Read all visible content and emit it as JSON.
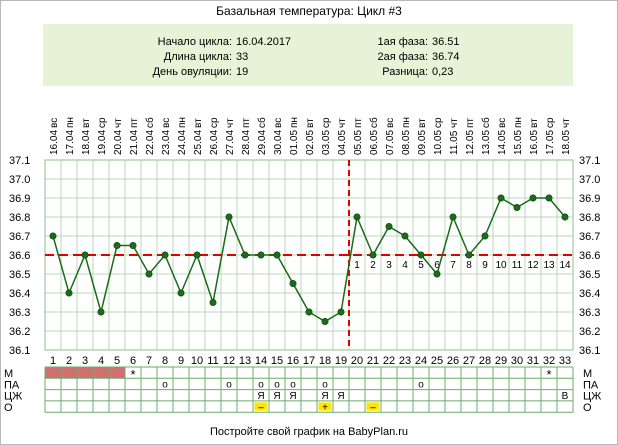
{
  "title": "Базальная температура: Цикл #3",
  "info": {
    "start_label": "Начало цикла:",
    "start_value": "16.04.2017",
    "length_label": "Длина цикла:",
    "length_value": "33",
    "ovulation_label": "День овуляции:",
    "ovulation_value": "19",
    "phase1_label": "1ая фаза:",
    "phase1_value": "36.51",
    "phase2_label": "2ая фаза:",
    "phase2_value": "36.74",
    "diff_label": "Разница:",
    "diff_value": "0,23"
  },
  "footer": "Постройте свой график на BabyPlan.ru",
  "colors": {
    "line": "#1a6b1a",
    "point": "#1a6b1a",
    "grid": "#b9d8b9",
    "coverline": "#e00000",
    "ovulation_line": "#e00000",
    "luteal_numbers": "#cc5555",
    "info_bg": "#e6f3d6",
    "menstruation": "#d07070",
    "marker": "#cc3333",
    "yellow": "#ffe600"
  },
  "chart_data": {
    "type": "line",
    "days": [
      "1",
      "2",
      "3",
      "4",
      "5",
      "6",
      "7",
      "8",
      "9",
      "10",
      "11",
      "12",
      "13",
      "14",
      "15",
      "16",
      "17",
      "18",
      "19",
      "20",
      "21",
      "22",
      "23",
      "24",
      "25",
      "26",
      "27",
      "28",
      "29",
      "30",
      "31",
      "32",
      "33"
    ],
    "weekdays": [
      "вс",
      "пн",
      "вт",
      "ср",
      "чт",
      "пт",
      "сб",
      "вс",
      "пн",
      "вт",
      "ср",
      "чт",
      "пт",
      "сб",
      "вс",
      "пн",
      "вт",
      "ср",
      "чт",
      "пт",
      "сб",
      "вс",
      "пн",
      "вт",
      "ср",
      "чт",
      "пт",
      "сб",
      "вс",
      "пн",
      "вт",
      "ср",
      "чт"
    ],
    "dates": [
      "16.04",
      "17.04",
      "18.04",
      "19.04",
      "20.04",
      "21.04",
      "22.04",
      "23.04",
      "24.04",
      "25.04",
      "26.04",
      "27.04",
      "28.04",
      "29.04",
      "30.04",
      "01.05",
      "02.05",
      "03.05",
      "04.05",
      "05.05",
      "06.05",
      "07.05",
      "08.05",
      "09.05",
      "10.05",
      "11.05",
      "12.05",
      "13.05",
      "14.05",
      "15.05",
      "16.05",
      "17.05",
      "18.05"
    ],
    "values": [
      36.7,
      36.4,
      36.6,
      36.3,
      36.65,
      36.65,
      36.5,
      36.6,
      36.4,
      36.6,
      36.35,
      36.8,
      36.6,
      36.6,
      36.6,
      36.45,
      36.3,
      36.25,
      36.3,
      36.8,
      36.6,
      36.75,
      36.7,
      36.6,
      36.5,
      36.8,
      36.6,
      36.7,
      36.9,
      36.85,
      36.9,
      36.9,
      36.8
    ],
    "ylim": [
      36.1,
      37.1
    ],
    "y_ticks": [
      "36.1",
      "36.2",
      "36.3",
      "36.4",
      "36.5",
      "36.6",
      "36.7",
      "36.8",
      "36.9",
      "37.0",
      "37.1"
    ],
    "coverline": 36.6,
    "ovulation_day": 19,
    "luteal_labels": [
      "1",
      "2",
      "3",
      "4",
      "5",
      "6",
      "7",
      "8",
      "9",
      "10",
      "11",
      "12",
      "13",
      "14"
    ],
    "grid": true
  },
  "rows": {
    "labels": [
      "М",
      "ПА",
      "ЦЖ",
      "О"
    ],
    "menstruation_days": [
      1,
      2,
      3,
      4,
      5
    ],
    "m_star_days": [
      6,
      32
    ],
    "m_star": "*",
    "pa_days": [
      8,
      12,
      14,
      15,
      16,
      18,
      24
    ],
    "pa_mark": "o",
    "cz": [
      {
        "day": 14,
        "text": "Я"
      },
      {
        "day": 15,
        "text": "Я"
      },
      {
        "day": 16,
        "text": "Я"
      },
      {
        "day": 18,
        "text": "Я"
      },
      {
        "day": 19,
        "text": "Я"
      },
      {
        "day": 33,
        "text": "В"
      }
    ],
    "o": [
      {
        "day": 14,
        "text": "–"
      },
      {
        "day": 18,
        "text": "+"
      },
      {
        "day": 21,
        "text": "–"
      }
    ]
  }
}
